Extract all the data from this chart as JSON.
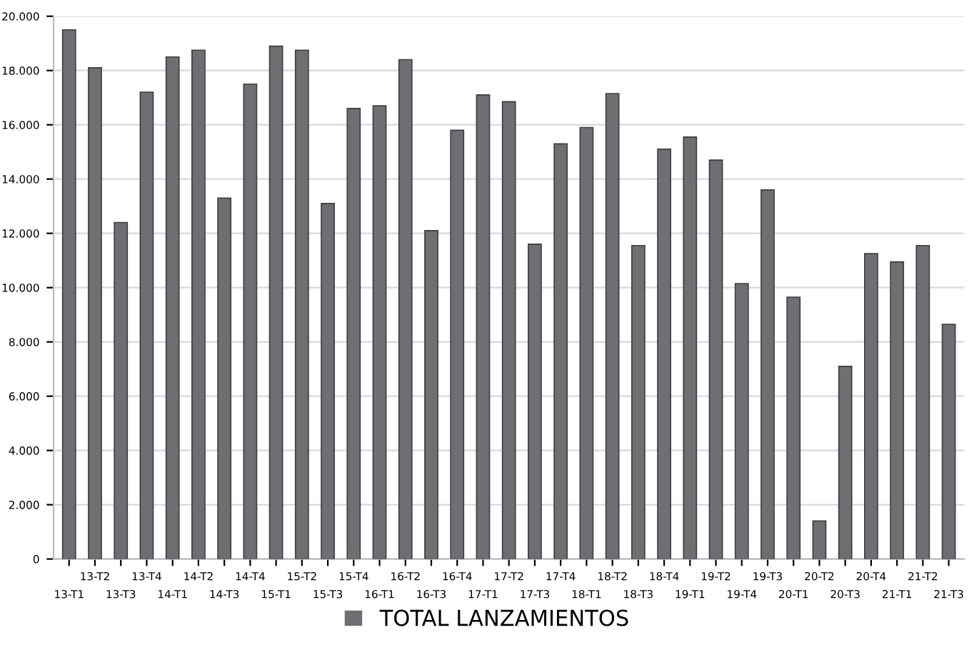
{
  "chart_data": {
    "type": "bar",
    "categories": [
      "13-T1",
      "13-T2",
      "13-T3",
      "13-T4",
      "14-T1",
      "14-T2",
      "14-T3",
      "14-T4",
      "15-T1",
      "15-T2",
      "15-T3",
      "15-T4",
      "16-T1",
      "16-T2",
      "16-T3",
      "16-T4",
      "17-T1",
      "17-T2",
      "17-T3",
      "17-T4",
      "18-T1",
      "18-T2",
      "18-T3",
      "18-T4",
      "19-T1",
      "19-T2",
      "19-T4",
      "19-T3",
      "20-T1",
      "20-T2",
      "20-T3",
      "20-T4",
      "21-T1",
      "21-T2",
      "21-T3"
    ],
    "series": [
      {
        "name": "TOTAL LANZAMIENTOS",
        "color": "#6e6f72",
        "values": [
          19500,
          18100,
          12400,
          17200,
          18500,
          18750,
          13300,
          17500,
          18900,
          18750,
          13100,
          16600,
          16700,
          18400,
          12100,
          15800,
          17100,
          16850,
          11600,
          15300,
          15900,
          17150,
          11550,
          15100,
          15550,
          14700,
          10150,
          13600,
          9650,
          1400,
          7100,
          11250,
          10950,
          11550,
          8650
        ]
      }
    ],
    "ylim": [
      0,
      20000
    ],
    "yticks": [
      {
        "value": 0,
        "label": "0"
      },
      {
        "value": 2000,
        "label": "2.000"
      },
      {
        "value": 4000,
        "label": "4.000"
      },
      {
        "value": 6000,
        "label": "6.000"
      },
      {
        "value": 8000,
        "label": "8.000"
      },
      {
        "value": 10000,
        "label": "10.000"
      },
      {
        "value": 12000,
        "label": "12.000"
      },
      {
        "value": 14000,
        "label": "14.000"
      },
      {
        "value": 16000,
        "label": "16.000"
      },
      {
        "value": 18000,
        "label": "18.000"
      },
      {
        "value": 20000,
        "label": "20.000"
      }
    ],
    "grid": "y",
    "legend": "bottom"
  }
}
